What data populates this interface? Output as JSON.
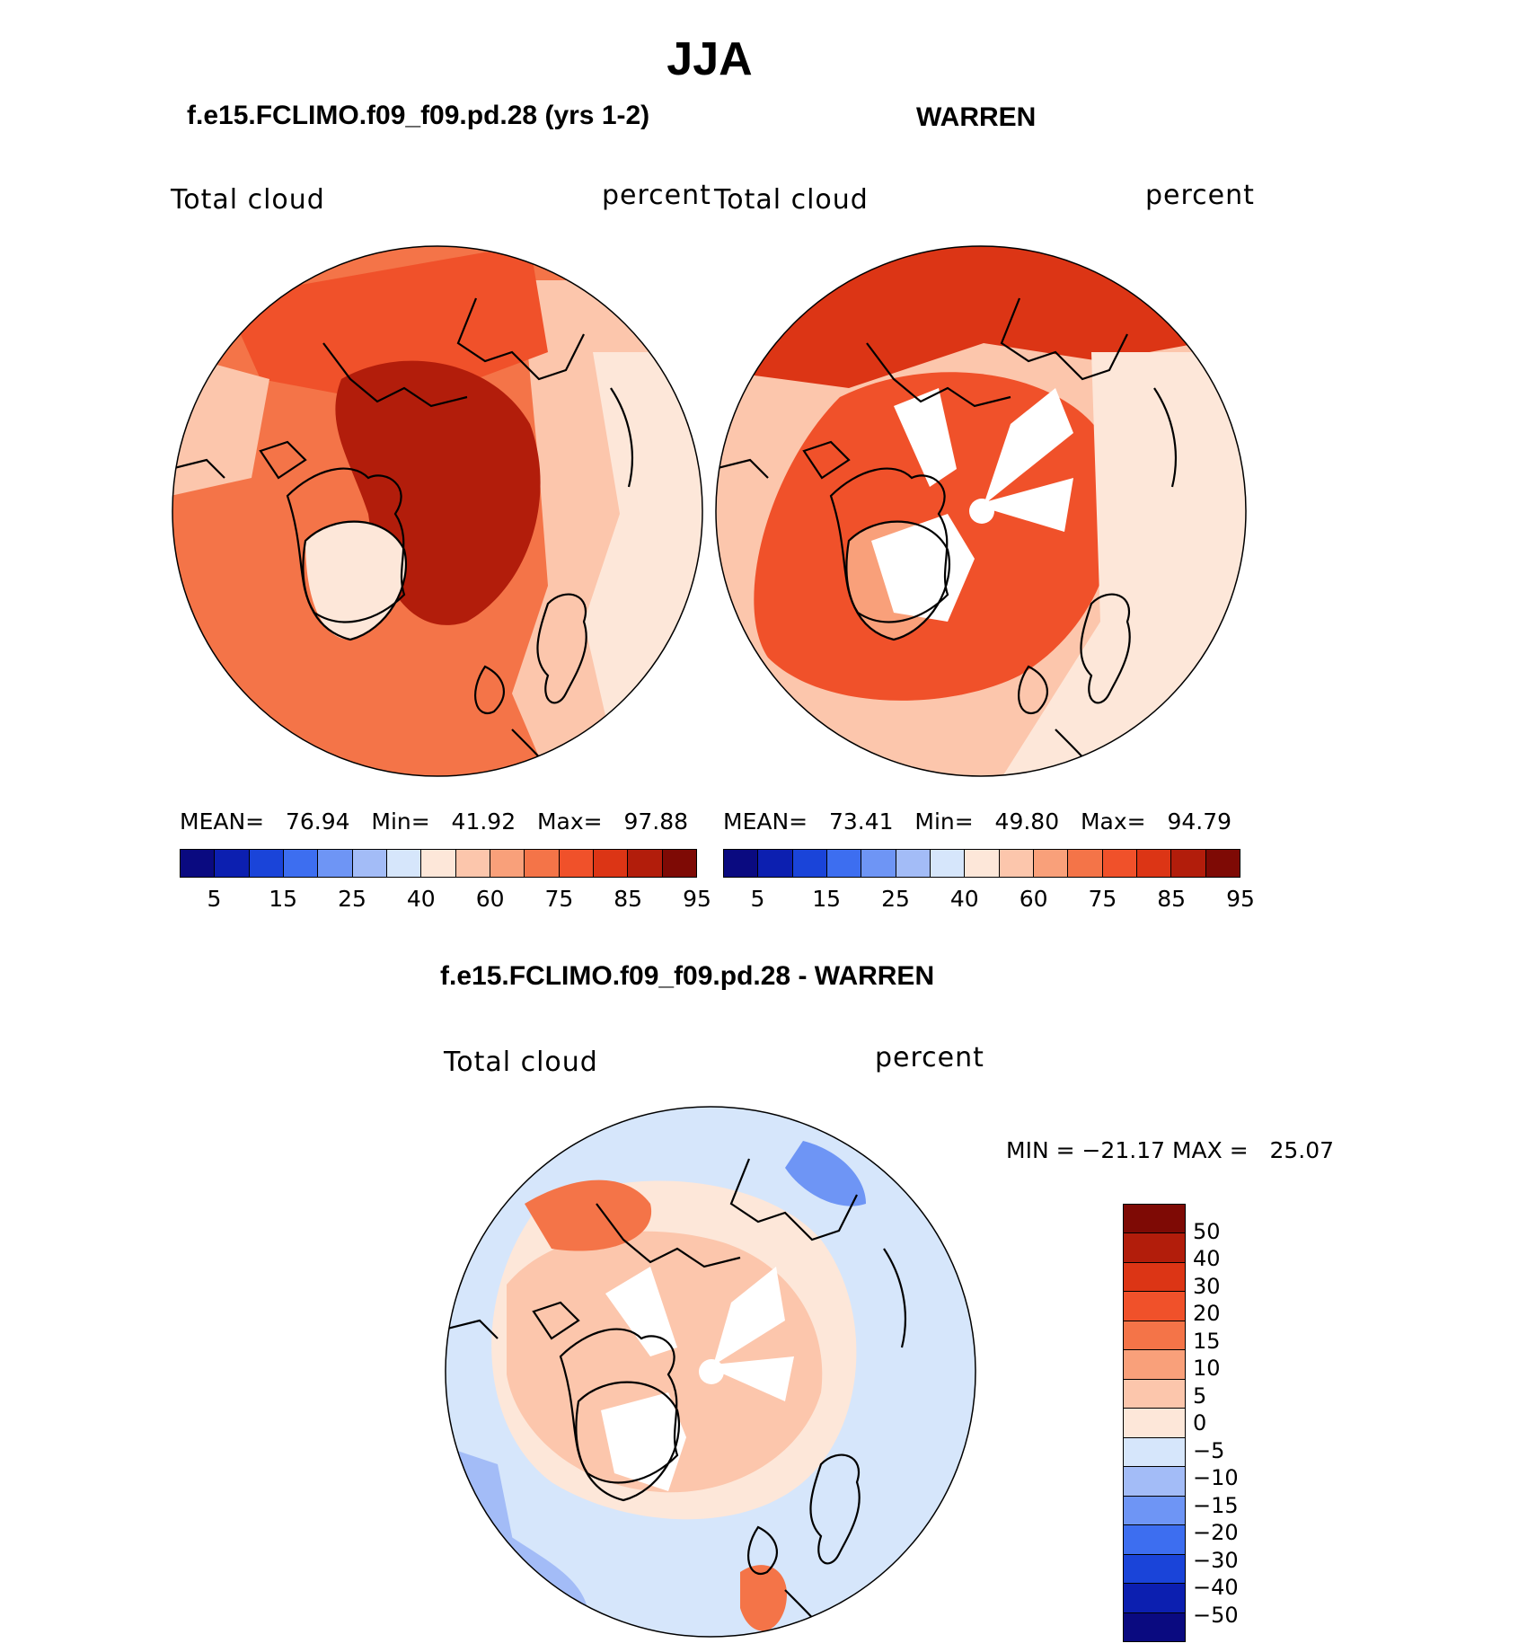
{
  "figure": {
    "title": "JJA",
    "panel_left_title": "f.e15.FCLIMO.f09_f09.pd.28 (yrs 1-2)",
    "panel_right_title": "WARREN",
    "diff_title": "f.e15.FCLIMO.f09_f09.pd.28 - WARREN"
  },
  "panels": {
    "left": {
      "var_label": "Total cloud",
      "units": "percent",
      "mean_label": "MEAN=",
      "mean": "76.94",
      "min_label": "Min=",
      "min": "41.92",
      "max_label": "Max=",
      "max": "97.88"
    },
    "right": {
      "var_label": "Total cloud",
      "units": "percent",
      "mean_label": "MEAN=",
      "mean": "73.41",
      "min_label": "Min=",
      "min": "49.80",
      "max_label": "Max=",
      "max": "94.79"
    },
    "diff": {
      "var_label": "Total cloud",
      "units": "percent",
      "minmax_text": "MIN = −21.17 MAX =   25.07"
    }
  },
  "colorbar_abs": {
    "colors": [
      "#0a0a80",
      "#0c1fb0",
      "#1a44d9",
      "#3d6ef0",
      "#6e95f5",
      "#a3bcf7",
      "#d6e6fb",
      "#fde7d9",
      "#fcc6ac",
      "#f9a07a",
      "#f47448",
      "#f0512a",
      "#dc3515",
      "#b21d0b",
      "#7e0a05"
    ],
    "labels": [
      "5",
      "15",
      "25",
      "40",
      "60",
      "75",
      "85",
      "95"
    ]
  },
  "colorbar_diff": {
    "colors": [
      "#7e0a05",
      "#b21d0b",
      "#dc3515",
      "#f0512a",
      "#f47448",
      "#f9a07a",
      "#fcc6ac",
      "#fde7d9",
      "#d6e6fb",
      "#a3bcf7",
      "#6e95f5",
      "#3d6ef0",
      "#1a44d9",
      "#0c1fb0",
      "#0a0a80"
    ],
    "labels": [
      "50",
      "40",
      "30",
      "20",
      "15",
      "10",
      "5",
      "0",
      "−5",
      "−10",
      "−15",
      "−20",
      "−30",
      "−40",
      "−50"
    ]
  },
  "map_colors": {
    "ocean_low": "#fde7d9",
    "mid": "#f9a07a",
    "high": "#f0512a",
    "very_high": "#b21d0b",
    "missing": "#ffffff",
    "diff_neg": "#d6e6fb",
    "diff_neg2": "#a3bcf7",
    "diff_pos": "#fcc6ac",
    "diff_pos2": "#f47448"
  }
}
